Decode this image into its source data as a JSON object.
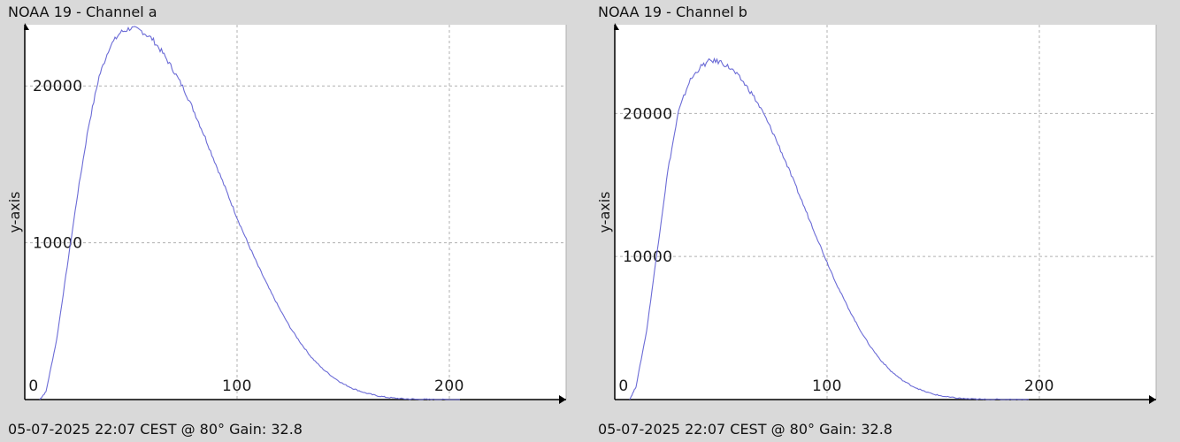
{
  "panels": [
    {
      "title": "NOAA 19 - Channel a",
      "footer": "05-07-2025 22:07 CEST @ 80° Gain: 32.8"
    },
    {
      "title": "NOAA 19 - Channel b",
      "footer": "05-07-2025 22:07 CEST @ 80° Gain: 32.8"
    }
  ],
  "colors": {
    "line": "#6b6bd6",
    "background": "#d9d9d9",
    "plot_area": "#ffffff",
    "grid": "#b0b0b0",
    "axis": "#000000"
  },
  "chart_data": [
    {
      "type": "line",
      "ylabel": "y-axis",
      "xlim": [
        0,
        255
      ],
      "ylim": [
        0,
        24000
      ],
      "x_ticks": [
        0,
        100,
        200
      ],
      "y_ticks": [
        10000,
        20000
      ],
      "x_tick_labels": [
        "0",
        "100",
        "200"
      ],
      "y_tick_labels": [
        "10000",
        "20000"
      ],
      "grid": true,
      "series": [
        {
          "x": [
            7,
            10,
            15,
            20,
            25,
            30,
            35,
            40,
            45,
            50,
            55,
            60,
            65,
            70,
            75,
            80,
            85,
            90,
            95,
            100,
            105,
            110,
            115,
            120,
            125,
            130,
            135,
            140,
            145,
            150,
            155,
            160,
            165,
            170,
            175,
            180,
            185,
            190,
            195,
            200,
            205
          ],
          "y": [
            0,
            500,
            3800,
            8500,
            13200,
            17400,
            20600,
            22500,
            23400,
            23700,
            23500,
            23000,
            22100,
            21000,
            19800,
            18300,
            16700,
            15000,
            13300,
            11600,
            10000,
            8500,
            7100,
            5800,
            4600,
            3600,
            2700,
            2000,
            1450,
            1000,
            680,
            440,
            270,
            150,
            80,
            40,
            20,
            10,
            5,
            2,
            0
          ]
        }
      ]
    },
    {
      "type": "line",
      "ylabel": "y-axis",
      "xlim": [
        0,
        255
      ],
      "ylim": [
        0,
        24000
      ],
      "x_ticks": [
        0,
        100,
        200
      ],
      "y_ticks": [
        10000,
        20000
      ],
      "x_tick_labels": [
        "0",
        "100",
        "200"
      ],
      "y_tick_labels": [
        "10000",
        "20000"
      ],
      "grid": true,
      "series": [
        {
          "x": [
            7,
            10,
            15,
            20,
            25,
            30,
            35,
            40,
            45,
            50,
            55,
            60,
            65,
            70,
            75,
            80,
            85,
            90,
            95,
            100,
            105,
            110,
            115,
            120,
            125,
            130,
            135,
            140,
            145,
            150,
            155,
            160,
            165,
            170,
            175,
            180,
            185,
            190,
            195
          ],
          "y": [
            0,
            900,
            4800,
            10400,
            16000,
            20100,
            22200,
            23200,
            23700,
            23600,
            23100,
            22300,
            21300,
            20000,
            18500,
            16800,
            15000,
            13200,
            11400,
            9600,
            7900,
            6400,
            5000,
            3800,
            2800,
            2000,
            1400,
            950,
            620,
            380,
            220,
            120,
            60,
            30,
            15,
            8,
            4,
            1,
            0
          ]
        }
      ]
    }
  ]
}
